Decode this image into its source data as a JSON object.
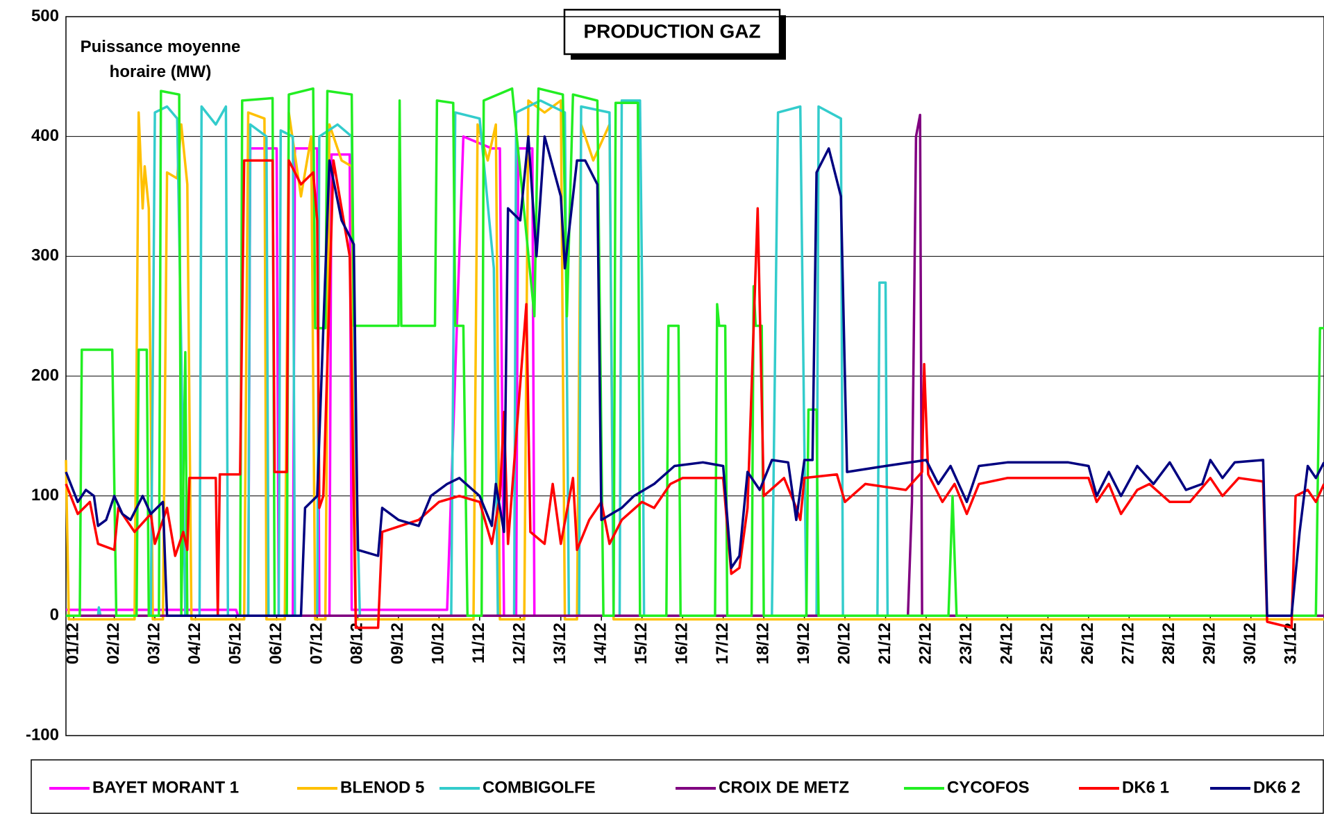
{
  "chart_data": {
    "type": "line",
    "title": "PRODUCTION GAZ",
    "y_label": "Puissance moyenne horaire (MW)",
    "ylim": [
      -100,
      500
    ],
    "yticks": [
      -100,
      0,
      100,
      200,
      300,
      400,
      500
    ],
    "grid": true,
    "xlim": [
      0.81,
      31.8
    ],
    "xticks": [
      {
        "value": 1,
        "label": "01/12"
      },
      {
        "value": 2,
        "label": "02/12"
      },
      {
        "value": 3,
        "label": "03/12"
      },
      {
        "value": 4,
        "label": "04/12"
      },
      {
        "value": 5,
        "label": "05/12"
      },
      {
        "value": 6,
        "label": "06/12"
      },
      {
        "value": 7,
        "label": "07/12"
      },
      {
        "value": 8,
        "label": "08/12"
      },
      {
        "value": 9,
        "label": "09/12"
      },
      {
        "value": 10,
        "label": "10/12"
      },
      {
        "value": 11,
        "label": "11/12"
      },
      {
        "value": 12,
        "label": "12/12"
      },
      {
        "value": 13,
        "label": "13/12"
      },
      {
        "value": 14,
        "label": "14/12"
      },
      {
        "value": 15,
        "label": "15/12"
      },
      {
        "value": 16,
        "label": "16/12"
      },
      {
        "value": 17,
        "label": "17/12"
      },
      {
        "value": 18,
        "label": "18/12"
      },
      {
        "value": 19,
        "label": "19/12"
      },
      {
        "value": 20,
        "label": "20/12"
      },
      {
        "value": 21,
        "label": "21/12"
      },
      {
        "value": 22,
        "label": "22/12"
      },
      {
        "value": 23,
        "label": "23/12"
      },
      {
        "value": 24,
        "label": "24/12"
      },
      {
        "value": 25,
        "label": "25/12"
      },
      {
        "value": 26,
        "label": "26/12"
      },
      {
        "value": 27,
        "label": "27/12"
      },
      {
        "value": 28,
        "label": "28/12"
      },
      {
        "value": 29,
        "label": "29/12"
      },
      {
        "value": 30,
        "label": "30/12"
      },
      {
        "value": 31,
        "label": "31/12"
      }
    ],
    "series": [
      {
        "name": "BAYET MORANT 1",
        "color": "#ff00ff",
        "x": [
          0.81,
          5.0,
          5.05,
          5.3,
          5.35,
          6.0,
          6.05,
          6.4,
          6.45,
          7.0,
          7.05,
          7.3,
          7.35,
          7.8,
          7.85,
          10.2,
          10.6,
          11.3,
          11.5,
          11.6,
          11.9,
          11.95,
          12.3,
          12.35,
          31.8
        ],
        "values": [
          5,
          5,
          0,
          0,
          390,
          390,
          0,
          0,
          390,
          390,
          0,
          0,
          385,
          385,
          5,
          5,
          400,
          390,
          390,
          0,
          0,
          390,
          390,
          0,
          0
        ]
      },
      {
        "name": "BLENOD 5",
        "color": "#ffc000",
        "x": [
          0.81,
          0.88,
          2.5,
          2.6,
          2.7,
          2.75,
          2.85,
          2.95,
          3.2,
          3.3,
          3.55,
          3.65,
          3.8,
          3.9,
          5.2,
          5.3,
          5.7,
          5.75,
          6.2,
          6.3,
          6.6,
          6.85,
          6.95,
          7.2,
          7.3,
          7.6,
          7.85,
          7.95,
          10.85,
          10.95,
          11.2,
          11.4,
          11.5,
          12.1,
          12.2,
          12.6,
          13.0,
          13.1,
          13.4,
          13.5,
          13.8,
          14.2,
          14.3,
          31.8
        ],
        "values": [
          130,
          -3,
          -3,
          420,
          340,
          375,
          340,
          -3,
          -3,
          370,
          365,
          410,
          360,
          -3,
          -3,
          420,
          415,
          -3,
          -3,
          420,
          350,
          400,
          -3,
          -3,
          410,
          380,
          375,
          -3,
          -3,
          410,
          380,
          410,
          -3,
          -3,
          430,
          420,
          430,
          -3,
          -3,
          410,
          380,
          410,
          -3,
          -3
        ]
      },
      {
        "name": "COMBIGOLFE",
        "color": "#33cccc",
        "x": [
          0.81,
          1.6,
          1.62,
          1.66,
          2.9,
          3.0,
          3.3,
          3.55,
          3.65,
          3.75,
          4.1,
          4.15,
          4.5,
          4.75,
          4.8,
          5.3,
          5.35,
          5.75,
          5.8,
          6.05,
          6.1,
          6.4,
          6.45,
          7.0,
          7.05,
          7.5,
          7.85,
          7.95,
          8.05,
          10.3,
          10.4,
          11.0,
          11.35,
          11.45,
          11.85,
          11.9,
          12.5,
          13.1,
          13.2,
          13.45,
          13.5,
          14.2,
          14.3,
          14.45,
          14.5,
          14.95,
          15.0,
          15.05,
          18.2,
          18.35,
          18.9,
          18.95,
          19.05,
          19.3,
          19.35,
          19.9,
          19.95,
          20.8,
          20.85,
          21.0,
          21.05,
          31.8
        ],
        "values": [
          0,
          0,
          7,
          0,
          0,
          420,
          425,
          415,
          220,
          0,
          0,
          425,
          410,
          425,
          0,
          0,
          410,
          400,
          0,
          0,
          405,
          400,
          0,
          0,
          400,
          410,
          400,
          140,
          0,
          0,
          420,
          415,
          290,
          0,
          0,
          420,
          430,
          420,
          0,
          0,
          425,
          420,
          0,
          0,
          430,
          430,
          280,
          0,
          0,
          420,
          425,
          280,
          0,
          0,
          425,
          415,
          0,
          0,
          278,
          278,
          0,
          0
        ]
      },
      {
        "name": "CROIX DE METZ",
        "color": "#800080",
        "x": [
          0.81,
          21.55,
          21.65,
          21.75,
          21.85,
          21.9,
          31.8
        ],
        "values": [
          0,
          0,
          95,
          400,
          418,
          0,
          0
        ]
      },
      {
        "name": "CYCOFOS",
        "color": "#22ee22",
        "x": [
          0.81,
          1.15,
          1.2,
          1.95,
          2.05,
          2.55,
          2.6,
          2.8,
          2.85,
          3.1,
          3.15,
          3.6,
          3.65,
          3.75,
          3.8,
          5.1,
          5.15,
          5.9,
          5.95,
          6.25,
          6.3,
          6.9,
          6.95,
          7.2,
          7.25,
          7.85,
          7.9,
          9.0,
          9.03,
          9.07,
          9.9,
          9.95,
          10.35,
          10.4,
          10.6,
          10.7,
          11.05,
          11.1,
          11.8,
          12.35,
          12.45,
          13.05,
          13.15,
          13.3,
          13.9,
          14.05,
          14.3,
          14.35,
          14.9,
          14.95,
          15.6,
          15.65,
          15.9,
          15.95,
          16.8,
          16.85,
          16.9,
          17.05,
          17.1,
          17.7,
          17.75,
          17.8,
          17.95,
          18.0,
          19.05,
          19.1,
          19.3,
          19.35,
          22.55,
          22.65,
          22.75,
          31.6,
          31.7,
          31.8
        ],
        "values": [
          0,
          0,
          222,
          222,
          0,
          0,
          222,
          222,
          0,
          0,
          438,
          435,
          0,
          220,
          0,
          0,
          430,
          432,
          0,
          0,
          435,
          440,
          240,
          240,
          438,
          435,
          242,
          242,
          430,
          242,
          242,
          430,
          428,
          242,
          242,
          0,
          0,
          430,
          440,
          250,
          440,
          435,
          250,
          435,
          430,
          0,
          0,
          428,
          428,
          0,
          0,
          242,
          242,
          0,
          0,
          260,
          242,
          242,
          0,
          0,
          275,
          242,
          242,
          0,
          0,
          172,
          172,
          0,
          0,
          100,
          0,
          0,
          240,
          240
        ]
      },
      {
        "name": "DK6 1",
        "color": "#ff0000",
        "x": [
          0.81,
          1.1,
          1.4,
          1.6,
          2.0,
          2.1,
          2.5,
          2.9,
          3.0,
          3.3,
          3.5,
          3.7,
          3.8,
          3.85,
          4.5,
          4.55,
          4.6,
          5.1,
          5.2,
          5.9,
          5.95,
          6.25,
          6.3,
          6.6,
          6.9,
          7.0,
          7.05,
          7.15,
          7.4,
          7.8,
          7.95,
          8.5,
          8.6,
          9.5,
          10.0,
          10.5,
          11.0,
          11.3,
          11.5,
          11.6,
          11.7,
          12.15,
          12.25,
          12.6,
          12.8,
          13.0,
          13.3,
          13.4,
          13.7,
          14.0,
          14.2,
          14.5,
          15.0,
          15.3,
          15.7,
          16.0,
          17.0,
          17.2,
          17.4,
          17.6,
          17.85,
          18.0,
          18.5,
          18.8,
          18.9,
          19.0,
          19.8,
          20.0,
          20.5,
          21.5,
          21.9,
          21.95,
          22.05,
          22.4,
          22.7,
          23.0,
          23.3,
          24.0,
          26.0,
          26.2,
          26.5,
          26.8,
          27.2,
          27.5,
          28.0,
          28.5,
          29.0,
          29.3,
          29.7,
          30.3,
          30.4,
          31.0,
          31.1,
          31.4,
          31.6,
          31.8
        ],
        "values": [
          110,
          85,
          95,
          60,
          55,
          90,
          70,
          85,
          60,
          90,
          50,
          70,
          55,
          115,
          115,
          0,
          118,
          118,
          380,
          380,
          120,
          120,
          380,
          360,
          370,
          330,
          90,
          100,
          380,
          300,
          -10,
          -10,
          70,
          80,
          95,
          100,
          95,
          60,
          100,
          170,
          60,
          260,
          70,
          60,
          110,
          60,
          115,
          55,
          80,
          95,
          60,
          80,
          95,
          90,
          110,
          115,
          115,
          35,
          40,
          90,
          340,
          100,
          115,
          90,
          80,
          115,
          118,
          95,
          110,
          105,
          120,
          210,
          118,
          95,
          110,
          85,
          110,
          115,
          115,
          95,
          110,
          85,
          105,
          110,
          95,
          95,
          115,
          100,
          115,
          112,
          -5,
          -10,
          100,
          105,
          95,
          110
        ]
      },
      {
        "name": "DK6 2",
        "color": "#000080",
        "x": [
          0.81,
          1.1,
          1.3,
          1.5,
          1.6,
          1.8,
          2.0,
          2.2,
          2.4,
          2.7,
          2.9,
          3.2,
          3.3,
          6.6,
          6.7,
          7.0,
          7.3,
          7.6,
          7.9,
          8.0,
          8.5,
          8.6,
          9.0,
          9.5,
          9.8,
          10.2,
          10.5,
          11.0,
          11.3,
          11.4,
          11.6,
          11.7,
          12.0,
          12.2,
          12.4,
          12.6,
          13.0,
          13.1,
          13.4,
          13.6,
          13.9,
          14.0,
          14.5,
          14.8,
          15.3,
          15.8,
          16.5,
          17.0,
          17.2,
          17.4,
          17.6,
          17.9,
          18.2,
          18.6,
          18.8,
          19.0,
          19.2,
          19.3,
          19.6,
          19.9,
          20.05,
          21.0,
          22.0,
          22.3,
          22.6,
          23.0,
          23.3,
          24.0,
          25.5,
          26.0,
          26.2,
          26.5,
          26.8,
          27.2,
          27.6,
          28.0,
          28.4,
          28.8,
          29.0,
          29.3,
          29.6,
          30.3,
          30.4,
          31.0,
          31.2,
          31.4,
          31.6,
          31.8
        ],
        "values": [
          120,
          95,
          105,
          100,
          75,
          80,
          100,
          85,
          80,
          100,
          85,
          95,
          0,
          0,
          90,
          100,
          380,
          330,
          310,
          55,
          50,
          90,
          80,
          75,
          100,
          110,
          115,
          100,
          75,
          110,
          70,
          340,
          330,
          400,
          300,
          400,
          350,
          290,
          380,
          380,
          360,
          80,
          90,
          100,
          110,
          125,
          128,
          125,
          40,
          50,
          120,
          105,
          130,
          128,
          80,
          130,
          130,
          370,
          390,
          350,
          120,
          125,
          130,
          110,
          125,
          95,
          125,
          128,
          128,
          125,
          100,
          120,
          100,
          125,
          110,
          128,
          105,
          110,
          130,
          115,
          128,
          130,
          0,
          0,
          70,
          125,
          115,
          128
        ]
      }
    ]
  }
}
